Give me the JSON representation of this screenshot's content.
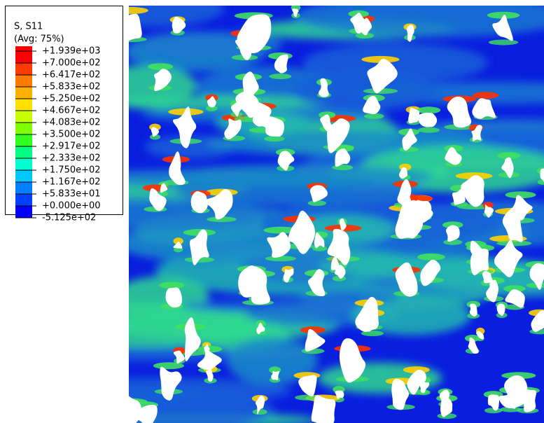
{
  "legend": {
    "title": "S, S11",
    "subtitle": "(Avg: 75%)",
    "labels": [
      "+1.939e+03",
      "+7.000e+02",
      "+6.417e+02",
      "+5.833e+02",
      "+5.250e+02",
      "+4.667e+02",
      "+4.083e+02",
      "+3.500e+02",
      "+2.917e+02",
      "+2.333e+02",
      "+1.750e+02",
      "+1.167e+02",
      "+5.833e+01",
      "+0.000e+00",
      "-5.125e+02"
    ],
    "colors": [
      "#ff0000",
      "#ff3a00",
      "#ff7a00",
      "#ffb000",
      "#ffe000",
      "#c8ff00",
      "#80ff00",
      "#30ff20",
      "#00ff80",
      "#00ffd0",
      "#00c8ff",
      "#0080ff",
      "#0040ff",
      "#0000ff"
    ]
  }
}
